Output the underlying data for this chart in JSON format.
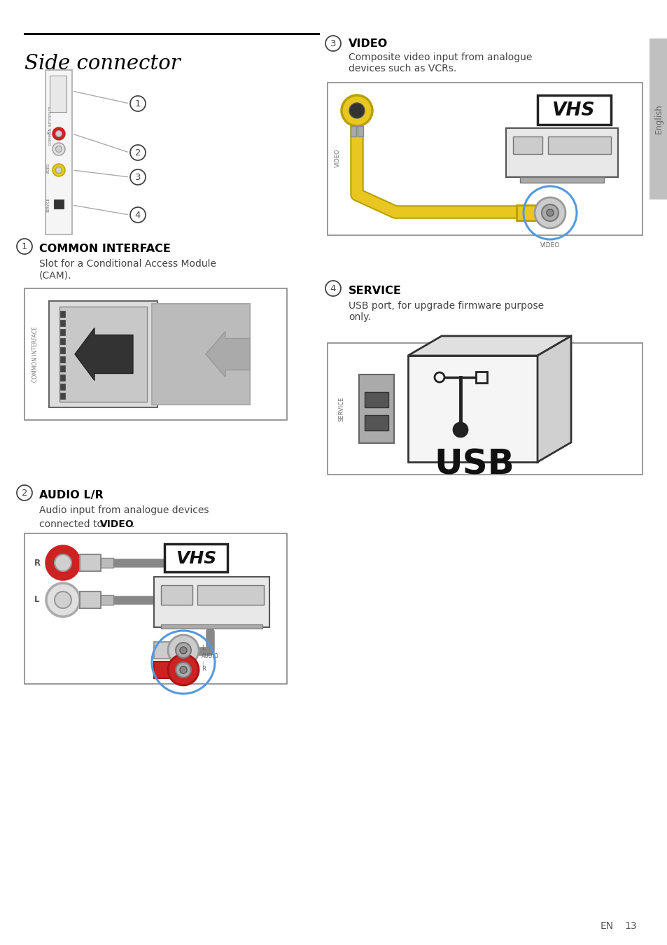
{
  "title": "Side connector",
  "bg_color": "#ffffff",
  "sidebar_text": "English",
  "footer_en": "EN",
  "footer_num": "13",
  "s1_num": "1",
  "s1_heading": "COMMON INTERFACE",
  "s1_body": "Slot for a Conditional Access Module\n(CAM).",
  "s2_num": "2",
  "s2_heading": "AUDIO L/R",
  "s2_body_normal": "Audio input from analogue devices\nconnected to ",
  "s2_body_bold": "VIDEO",
  "s2_body_end": ".",
  "s3_num": "3",
  "s3_heading": "VIDEO",
  "s3_body": "Composite video input from analogue\ndevices such as VCRs.",
  "s4_num": "4",
  "s4_heading": "SERVICE",
  "s4_body": "USB port, for upgrade firmware purpose\nonly."
}
